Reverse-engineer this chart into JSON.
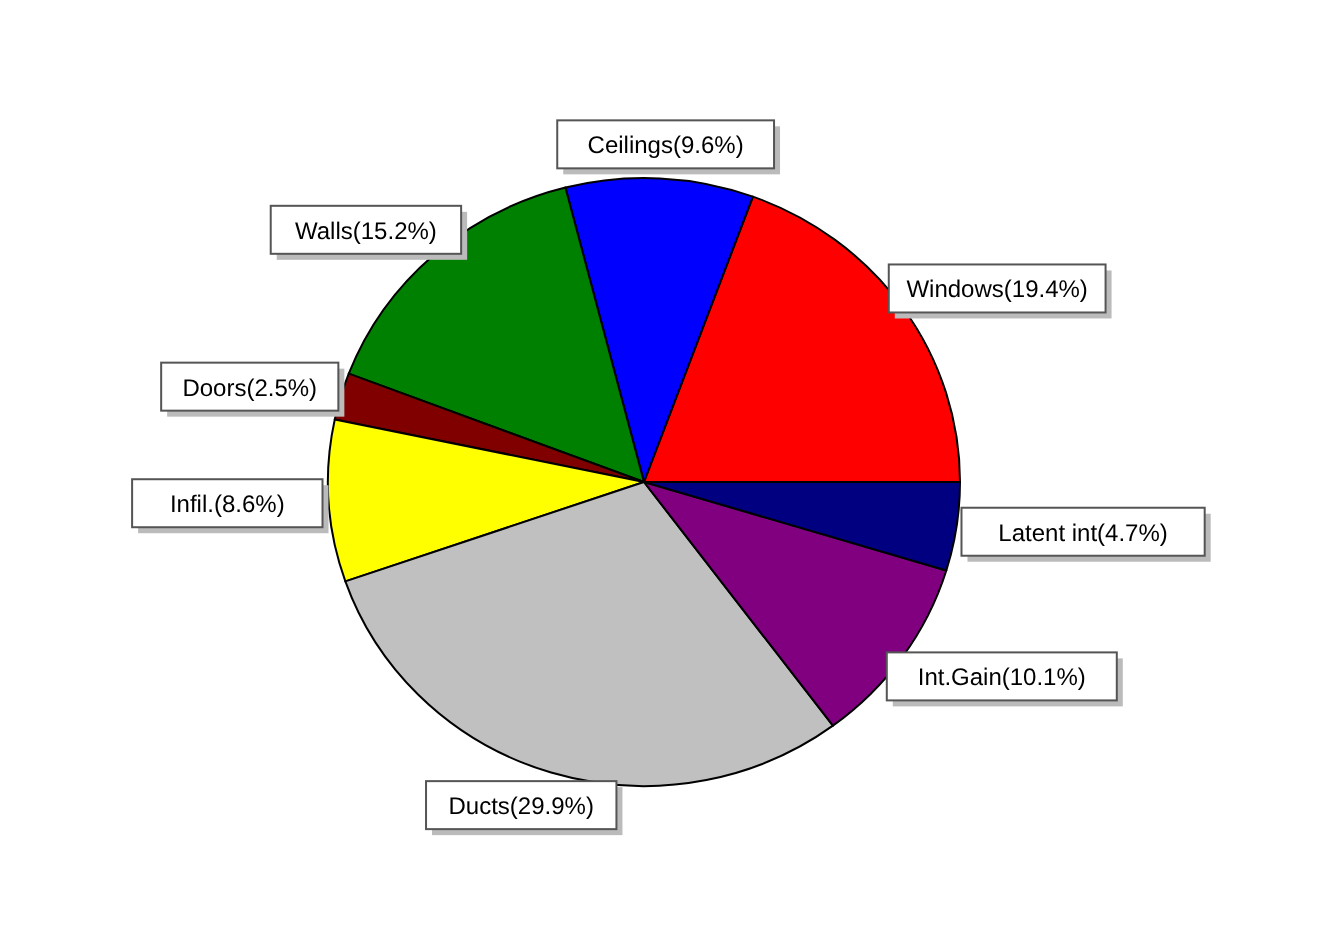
{
  "chart_data": {
    "type": "pie",
    "categories": [
      "Windows(19.4%)",
      "Ceilings(9.6%)",
      "Walls(15.2%)",
      "Doors(2.5%)",
      "Infil.(8.6%)",
      "Ducts(29.9%)",
      "Int.Gain(10.1%)",
      "Latent int(4.7%)"
    ],
    "values": [
      19.4,
      9.6,
      15.2,
      2.5,
      8.6,
      29.9,
      10.1,
      4.7
    ],
    "colors": [
      "#ff0000",
      "#0000ff",
      "#008000",
      "#800000",
      "#ffff00",
      "#c0c0c0",
      "#800080",
      "#000080"
    ]
  }
}
